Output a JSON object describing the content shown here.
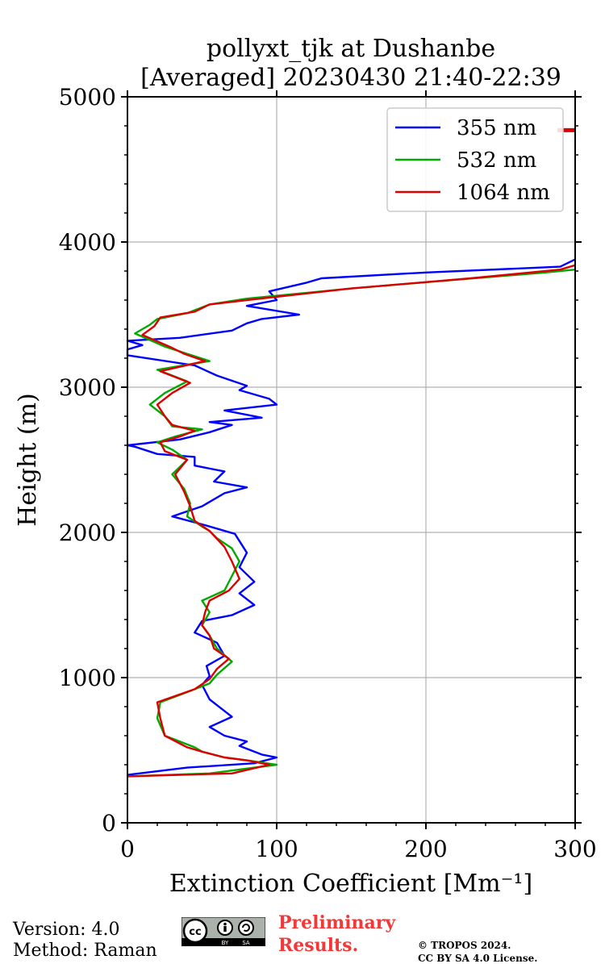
{
  "chart_data": {
    "type": "line",
    "title": "pollyxt_tjk at Dushanbe",
    "subtitle": "[Averaged] 20230430 21:40-22:39",
    "xlabel": "Extinction Coefficient [Mm⁻¹]",
    "ylabel": "Height (m)",
    "xlim": [
      0,
      300
    ],
    "ylim": [
      0,
      5000
    ],
    "xticks": [
      "0",
      "100",
      "200",
      "300"
    ],
    "yticks": [
      "0",
      "1000",
      "2000",
      "3000",
      "4000",
      "5000"
    ],
    "grid": true,
    "legend_position": "top-right",
    "series": [
      {
        "name": "355 nm",
        "color": "#0000ff",
        "points": [
          [
            0,
            330
          ],
          [
            40,
            380
          ],
          [
            85,
            410
          ],
          [
            100,
            450
          ],
          [
            90,
            470
          ],
          [
            75,
            530
          ],
          [
            80,
            560
          ],
          [
            65,
            600
          ],
          [
            55,
            660
          ],
          [
            70,
            730
          ],
          [
            60,
            810
          ],
          [
            55,
            850
          ],
          [
            50,
            950
          ],
          [
            55,
            1010
          ],
          [
            53,
            1080
          ],
          [
            65,
            1150
          ],
          [
            60,
            1240
          ],
          [
            45,
            1310
          ],
          [
            50,
            1390
          ],
          [
            70,
            1430
          ],
          [
            85,
            1500
          ],
          [
            75,
            1580
          ],
          [
            85,
            1660
          ],
          [
            75,
            1760
          ],
          [
            80,
            1860
          ],
          [
            72,
            1990
          ],
          [
            52,
            2050
          ],
          [
            30,
            2110
          ],
          [
            50,
            2180
          ],
          [
            65,
            2270
          ],
          [
            80,
            2310
          ],
          [
            58,
            2350
          ],
          [
            65,
            2420
          ],
          [
            45,
            2460
          ],
          [
            45,
            2520
          ],
          [
            20,
            2540
          ],
          [
            5,
            2590
          ],
          [
            0,
            2600
          ],
          [
            35,
            2640
          ],
          [
            55,
            2690
          ],
          [
            70,
            2740
          ],
          [
            55,
            2760
          ],
          [
            90,
            2790
          ],
          [
            65,
            2840
          ],
          [
            100,
            2880
          ],
          [
            95,
            2920
          ],
          [
            75,
            2980
          ],
          [
            80,
            3010
          ],
          [
            60,
            3080
          ],
          [
            45,
            3150
          ],
          [
            0,
            3220
          ],
          [
            0,
            3260
          ],
          [
            10,
            3290
          ],
          [
            0,
            3320
          ],
          [
            35,
            3340
          ],
          [
            70,
            3390
          ],
          [
            80,
            3440
          ],
          [
            90,
            3470
          ],
          [
            115,
            3500
          ],
          [
            80,
            3560
          ],
          [
            100,
            3600
          ],
          [
            95,
            3660
          ],
          [
            120,
            3720
          ],
          [
            130,
            3750
          ],
          [
            200,
            3790
          ],
          [
            290,
            3830
          ],
          [
            300,
            3880
          ]
        ]
      },
      {
        "name": "532 nm",
        "color": "#00aa00",
        "points": [
          [
            0,
            320
          ],
          [
            55,
            340
          ],
          [
            100,
            400
          ],
          [
            80,
            430
          ],
          [
            65,
            450
          ],
          [
            50,
            490
          ],
          [
            45,
            520
          ],
          [
            25,
            600
          ],
          [
            20,
            720
          ],
          [
            22,
            830
          ],
          [
            40,
            900
          ],
          [
            55,
            960
          ],
          [
            60,
            1020
          ],
          [
            70,
            1110
          ],
          [
            60,
            1200
          ],
          [
            55,
            1290
          ],
          [
            50,
            1360
          ],
          [
            55,
            1450
          ],
          [
            50,
            1530
          ],
          [
            65,
            1600
          ],
          [
            70,
            1700
          ],
          [
            75,
            1800
          ],
          [
            70,
            1890
          ],
          [
            60,
            1960
          ],
          [
            55,
            2010
          ],
          [
            50,
            2040
          ],
          [
            40,
            2110
          ],
          [
            42,
            2200
          ],
          [
            38,
            2300
          ],
          [
            30,
            2400
          ],
          [
            40,
            2500
          ],
          [
            30,
            2570
          ],
          [
            20,
            2620
          ],
          [
            32,
            2660
          ],
          [
            50,
            2710
          ],
          [
            30,
            2730
          ],
          [
            25,
            2800
          ],
          [
            15,
            2880
          ],
          [
            25,
            2960
          ],
          [
            40,
            3040
          ],
          [
            20,
            3120
          ],
          [
            55,
            3180
          ],
          [
            40,
            3230
          ],
          [
            25,
            3280
          ],
          [
            5,
            3370
          ],
          [
            15,
            3430
          ],
          [
            20,
            3470
          ],
          [
            40,
            3510
          ],
          [
            55,
            3570
          ],
          [
            80,
            3610
          ],
          [
            150,
            3680
          ],
          [
            220,
            3740
          ],
          [
            280,
            3790
          ],
          [
            300,
            3810
          ]
        ]
      },
      {
        "name": "1064 nm",
        "color": "#dd0000",
        "points": [
          [
            0,
            320
          ],
          [
            70,
            340
          ],
          [
            95,
            400
          ],
          [
            80,
            430
          ],
          [
            65,
            450
          ],
          [
            50,
            490
          ],
          [
            40,
            520
          ],
          [
            25,
            600
          ],
          [
            22,
            720
          ],
          [
            20,
            830
          ],
          [
            45,
            920
          ],
          [
            55,
            990
          ],
          [
            60,
            1060
          ],
          [
            68,
            1130
          ],
          [
            58,
            1200
          ],
          [
            55,
            1290
          ],
          [
            50,
            1360
          ],
          [
            52,
            1450
          ],
          [
            55,
            1530
          ],
          [
            68,
            1600
          ],
          [
            75,
            1680
          ],
          [
            70,
            1800
          ],
          [
            65,
            1900
          ],
          [
            55,
            2010
          ],
          [
            45,
            2080
          ],
          [
            42,
            2180
          ],
          [
            38,
            2280
          ],
          [
            32,
            2400
          ],
          [
            40,
            2500
          ],
          [
            25,
            2560
          ],
          [
            22,
            2620
          ],
          [
            35,
            2660
          ],
          [
            45,
            2700
          ],
          [
            30,
            2740
          ],
          [
            25,
            2800
          ],
          [
            20,
            2880
          ],
          [
            30,
            2960
          ],
          [
            42,
            3030
          ],
          [
            22,
            3110
          ],
          [
            52,
            3180
          ],
          [
            38,
            3230
          ],
          [
            28,
            3280
          ],
          [
            10,
            3360
          ],
          [
            18,
            3420
          ],
          [
            22,
            3480
          ],
          [
            45,
            3520
          ],
          [
            55,
            3570
          ],
          [
            80,
            3600
          ],
          [
            150,
            3680
          ],
          [
            230,
            3750
          ],
          [
            290,
            3810
          ],
          [
            300,
            3840
          ]
        ]
      }
    ],
    "edge_markers": [
      {
        "series": "1064 nm",
        "color": "#dd0000",
        "y": 4770
      }
    ]
  },
  "footer": {
    "version": "Version: 4.0",
    "method": "Method: Raman",
    "preliminary_line1": "Preliminary",
    "preliminary_line2": "Results.",
    "copyright_line1": "© TROPOS 2024.",
    "copyright_line2": "CC BY SA 4.0 License."
  },
  "license_badge": {
    "icon": "cc-by-sa-icon",
    "text": "cc",
    "by": "BY",
    "sa": "SA"
  }
}
